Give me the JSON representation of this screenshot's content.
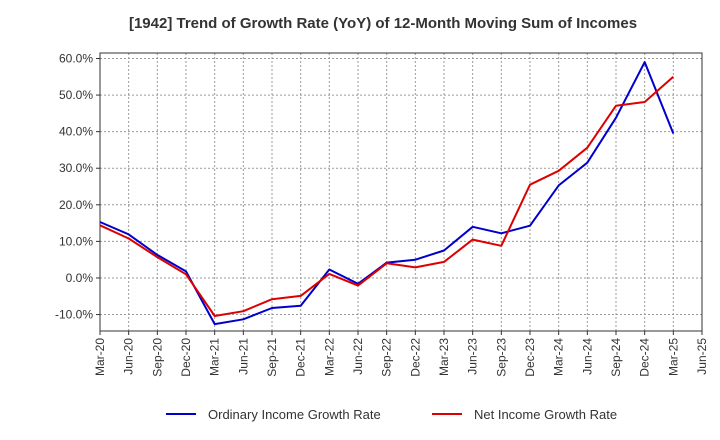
{
  "chart_data": {
    "type": "line",
    "title": "[1942]  Trend of Growth Rate (YoY) of 12-Month Moving Sum of Incomes",
    "xlabel": "",
    "ylabel": "",
    "categories": [
      "Mar-20",
      "Jun-20",
      "Sep-20",
      "Dec-20",
      "Mar-21",
      "Jun-21",
      "Sep-21",
      "Dec-21",
      "Mar-22",
      "Jun-22",
      "Sep-22",
      "Dec-22",
      "Mar-23",
      "Jun-23",
      "Sep-23",
      "Dec-23",
      "Mar-24",
      "Jun-24",
      "Sep-24",
      "Dec-24",
      "Mar-25",
      "Jun-25"
    ],
    "ylim": [
      -14.5,
      61.5
    ],
    "yticks": [
      -10,
      0,
      10,
      20,
      30,
      40,
      50,
      60
    ],
    "ytick_labels": [
      "-10.0%",
      "0.0%",
      "10.0%",
      "20.0%",
      "30.0%",
      "40.0%",
      "50.0%",
      "60.0%"
    ],
    "grid": true,
    "legend_position": "bottom",
    "series": [
      {
        "name": "Ordinary Income Growth Rate",
        "color": "#0000cc",
        "values": [
          15.3,
          11.9,
          6.3,
          1.8,
          -12.6,
          -11.3,
          -8.2,
          -7.6,
          2.3,
          -1.6,
          4.2,
          5.0,
          7.5,
          14.0,
          12.2,
          14.3,
          25.3,
          31.5,
          43.8,
          59.0,
          39.5,
          null
        ]
      },
      {
        "name": "Net Income Growth Rate",
        "color": "#dd0000",
        "values": [
          14.4,
          10.8,
          5.7,
          1.0,
          -10.4,
          -9.1,
          -5.8,
          -4.9,
          1.1,
          -2.1,
          4.0,
          2.9,
          4.4,
          10.5,
          8.8,
          25.5,
          29.3,
          35.6,
          47.1,
          48.1,
          55.0,
          null
        ]
      }
    ]
  },
  "colors": {
    "axis": "#333333",
    "grid": "#999999",
    "background": "#ffffff"
  }
}
